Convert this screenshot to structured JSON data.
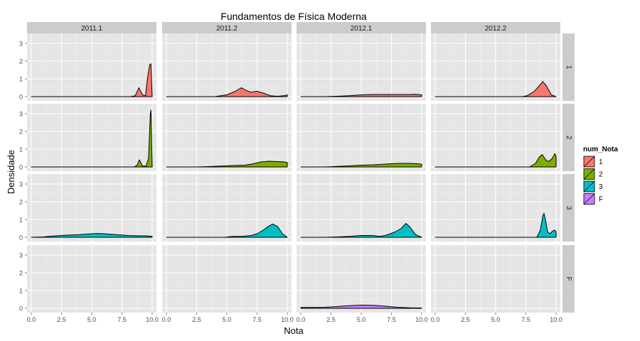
{
  "chart_data": {
    "type": "area",
    "title": "Fundamentos de Física Moderna",
    "xlabel": "Nota",
    "ylabel": "Densidade",
    "xlim": [
      0,
      10
    ],
    "ylim": [
      0,
      3.4
    ],
    "x_ticks": [
      "0.0",
      "2.5",
      "5.0",
      "7.5",
      "10.0"
    ],
    "y_ticks": [
      "0",
      "1",
      "2",
      "3"
    ],
    "grid": true,
    "legend_position": "right",
    "legend": {
      "title": "num_Nota",
      "entries": [
        {
          "label": "1",
          "color": "#F8766D"
        },
        {
          "label": "2",
          "color": "#7CAE00"
        },
        {
          "label": "3",
          "color": "#00BFC4"
        },
        {
          "label": "F",
          "color": "#C77CFF"
        }
      ]
    },
    "col_facets": [
      "2011.1",
      "2011.2",
      "2012.1",
      "2012.2"
    ],
    "row_facets": [
      "1",
      "2",
      "3",
      "F"
    ],
    "panels": [
      {
        "row": 0,
        "col": 0,
        "points": [
          [
            0,
            0
          ],
          [
            8.2,
            0
          ],
          [
            8.6,
            0.05
          ],
          [
            8.9,
            0.5
          ],
          [
            9.2,
            0.1
          ],
          [
            9.45,
            0.05
          ],
          [
            9.6,
            1.0
          ],
          [
            9.8,
            1.8
          ],
          [
            9.9,
            1.85
          ],
          [
            10,
            0
          ]
        ]
      },
      {
        "row": 0,
        "col": 1,
        "points": [
          [
            0,
            0
          ],
          [
            4.0,
            0
          ],
          [
            5.0,
            0.1
          ],
          [
            5.7,
            0.3
          ],
          [
            6.2,
            0.5
          ],
          [
            6.6,
            0.35
          ],
          [
            7.0,
            0.25
          ],
          [
            7.5,
            0.3
          ],
          [
            8.0,
            0.2
          ],
          [
            8.6,
            0.05
          ],
          [
            9.2,
            0.02
          ],
          [
            9.7,
            0.05
          ],
          [
            10,
            0.1
          ]
        ]
      },
      {
        "row": 0,
        "col": 2,
        "points": [
          [
            0,
            0
          ],
          [
            2.0,
            0
          ],
          [
            3.0,
            0.02
          ],
          [
            4.0,
            0.05
          ],
          [
            5.0,
            0.1
          ],
          [
            6.0,
            0.12
          ],
          [
            7.0,
            0.12
          ],
          [
            8.0,
            0.12
          ],
          [
            9.0,
            0.12
          ],
          [
            9.5,
            0.13
          ],
          [
            10,
            0.1
          ]
        ]
      },
      {
        "row": 0,
        "col": 3,
        "points": [
          [
            0,
            0
          ],
          [
            7.2,
            0
          ],
          [
            7.6,
            0.05
          ],
          [
            8.2,
            0.3
          ],
          [
            8.6,
            0.6
          ],
          [
            8.9,
            0.85
          ],
          [
            9.2,
            0.6
          ],
          [
            9.6,
            0.1
          ],
          [
            10,
            0
          ]
        ]
      },
      {
        "row": 1,
        "col": 0,
        "points": [
          [
            0,
            0
          ],
          [
            8.5,
            0
          ],
          [
            8.75,
            0.1
          ],
          [
            8.95,
            0.4
          ],
          [
            9.2,
            0.05
          ],
          [
            9.5,
            0.05
          ],
          [
            9.7,
            0.5
          ],
          [
            9.85,
            3.0
          ],
          [
            9.9,
            3.2
          ],
          [
            10,
            0
          ]
        ]
      },
      {
        "row": 1,
        "col": 1,
        "points": [
          [
            0,
            0
          ],
          [
            2.5,
            0
          ],
          [
            3.5,
            0.02
          ],
          [
            4.5,
            0.05
          ],
          [
            5.5,
            0.08
          ],
          [
            6.5,
            0.1
          ],
          [
            7.2,
            0.18
          ],
          [
            7.8,
            0.28
          ],
          [
            8.5,
            0.32
          ],
          [
            9.2,
            0.3
          ],
          [
            9.8,
            0.28
          ],
          [
            10,
            0.25
          ]
        ]
      },
      {
        "row": 1,
        "col": 2,
        "points": [
          [
            0,
            0
          ],
          [
            2.0,
            0
          ],
          [
            3.0,
            0.03
          ],
          [
            4.0,
            0.06
          ],
          [
            5.0,
            0.1
          ],
          [
            6.0,
            0.12
          ],
          [
            7.0,
            0.16
          ],
          [
            8.0,
            0.2
          ],
          [
            9.0,
            0.2
          ],
          [
            9.7,
            0.18
          ],
          [
            10,
            0.15
          ]
        ]
      },
      {
        "row": 1,
        "col": 3,
        "points": [
          [
            0,
            0
          ],
          [
            7.8,
            0
          ],
          [
            8.3,
            0.2
          ],
          [
            8.6,
            0.55
          ],
          [
            8.85,
            0.7
          ],
          [
            9.15,
            0.4
          ],
          [
            9.4,
            0.3
          ],
          [
            9.7,
            0.5
          ],
          [
            9.9,
            0.75
          ],
          [
            10,
            0.6
          ]
        ]
      },
      {
        "row": 2,
        "col": 0,
        "points": [
          [
            0,
            0
          ],
          [
            0.5,
            0.01
          ],
          [
            1.0,
            0.02
          ],
          [
            2.0,
            0.08
          ],
          [
            3.0,
            0.12
          ],
          [
            4.0,
            0.15
          ],
          [
            5.0,
            0.2
          ],
          [
            5.5,
            0.21
          ],
          [
            6.0,
            0.2
          ],
          [
            7.0,
            0.15
          ],
          [
            8.0,
            0.1
          ],
          [
            9.0,
            0.08
          ],
          [
            9.5,
            0.08
          ],
          [
            10,
            0.05
          ]
        ]
      },
      {
        "row": 2,
        "col": 1,
        "points": [
          [
            0,
            0
          ],
          [
            4.8,
            0
          ],
          [
            5.5,
            0.05
          ],
          [
            6.3,
            0.05
          ],
          [
            7.0,
            0.1
          ],
          [
            7.5,
            0.2
          ],
          [
            8.0,
            0.4
          ],
          [
            8.4,
            0.6
          ],
          [
            8.8,
            0.75
          ],
          [
            9.2,
            0.6
          ],
          [
            9.6,
            0.2
          ],
          [
            10,
            0
          ]
        ]
      },
      {
        "row": 2,
        "col": 2,
        "points": [
          [
            0,
            0
          ],
          [
            2.0,
            0
          ],
          [
            3.0,
            0.02
          ],
          [
            4.0,
            0.05
          ],
          [
            5.0,
            0.1
          ],
          [
            6.0,
            0.1
          ],
          [
            6.5,
            0.05
          ],
          [
            7.0,
            0.1
          ],
          [
            7.8,
            0.3
          ],
          [
            8.3,
            0.5
          ],
          [
            8.7,
            0.78
          ],
          [
            9.0,
            0.6
          ],
          [
            9.5,
            0.15
          ],
          [
            10,
            0
          ]
        ]
      },
      {
        "row": 2,
        "col": 3,
        "points": [
          [
            0,
            0
          ],
          [
            8.4,
            0
          ],
          [
            8.7,
            0.4
          ],
          [
            8.9,
            1.2
          ],
          [
            9.0,
            1.35
          ],
          [
            9.15,
            0.9
          ],
          [
            9.3,
            0.3
          ],
          [
            9.5,
            0.2
          ],
          [
            9.7,
            0.35
          ],
          [
            9.9,
            0.4
          ],
          [
            10,
            0.3
          ]
        ]
      },
      {
        "row": 3,
        "col": 2,
        "points": [
          [
            0,
            0
          ],
          [
            0,
            0.05
          ],
          [
            1.0,
            0.05
          ],
          [
            2.0,
            0.06
          ],
          [
            3.0,
            0.1
          ],
          [
            4.0,
            0.15
          ],
          [
            5.0,
            0.18
          ],
          [
            6.0,
            0.17
          ],
          [
            7.0,
            0.12
          ],
          [
            8.0,
            0.06
          ],
          [
            9.0,
            0.03
          ],
          [
            10,
            0.02
          ]
        ]
      }
    ]
  }
}
